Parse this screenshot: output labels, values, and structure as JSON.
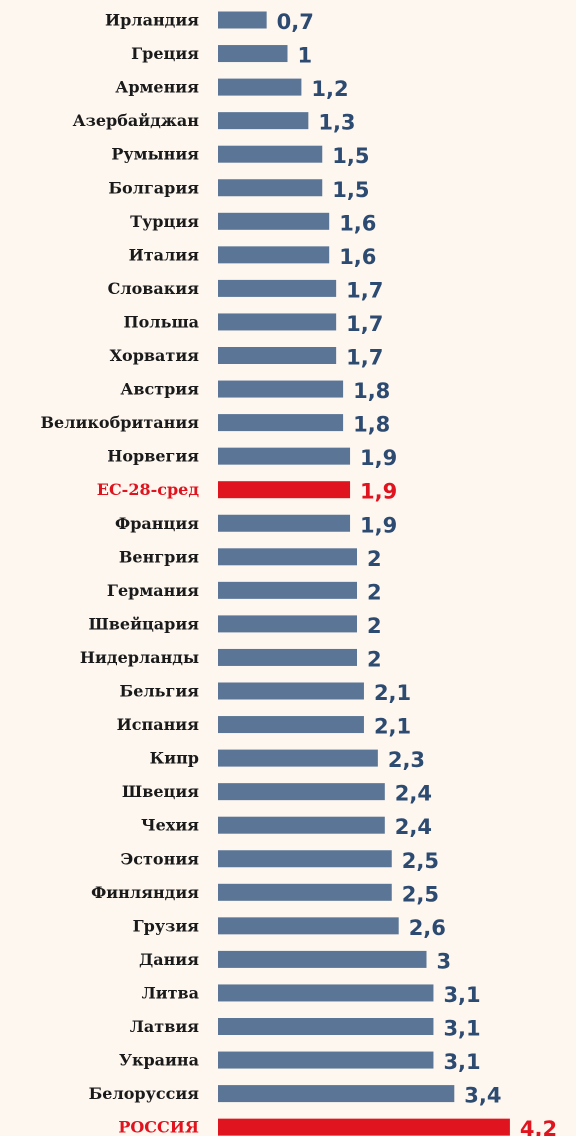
{
  "colors": {
    "bar": "#5b7596",
    "highlight": "#e0141e",
    "value_text": "#2d4a70",
    "label_text": "#1a1a1a",
    "background": "#fdf7f0"
  },
  "chart_data": {
    "type": "bar",
    "orientation": "horizontal",
    "categories": [
      "Ирландия",
      "Греция",
      "Армения",
      "Азербайджан",
      "Румыния",
      "Болгария",
      "Турция",
      "Италия",
      "Словакия",
      "Польша",
      "Хорватия",
      "Австрия",
      "Великобритания",
      "Норвегия",
      "ЕС-28-сред",
      "Франция",
      "Венгрия",
      "Германия",
      "Швейцария",
      "Нидерланды",
      "Бельгия",
      "Испания",
      "Кипр",
      "Швеция",
      "Чехия",
      "Эстония",
      "Финляндия",
      "Грузия",
      "Дания",
      "Литва",
      "Латвия",
      "Украина",
      "Белоруссия",
      "РОССИЯ"
    ],
    "values": [
      0.7,
      1,
      1.2,
      1.3,
      1.5,
      1.5,
      1.6,
      1.6,
      1.7,
      1.7,
      1.7,
      1.8,
      1.8,
      1.9,
      1.9,
      1.9,
      2,
      2,
      2,
      2,
      2.1,
      2.1,
      2.3,
      2.4,
      2.4,
      2.5,
      2.5,
      2.6,
      3,
      3.1,
      3.1,
      3.1,
      3.4,
      4.2
    ],
    "value_labels": [
      "0,7",
      "1",
      "1,2",
      "1,3",
      "1,5",
      "1,5",
      "1,6",
      "1,6",
      "1,7",
      "1,7",
      "1,7",
      "1,8",
      "1,8",
      "1,9",
      "1,9",
      "1,9",
      "2",
      "2",
      "2",
      "2",
      "2,1",
      "2,1",
      "2,3",
      "2,4",
      "2,4",
      "2,5",
      "2,5",
      "2,6",
      "3",
      "3,1",
      "3,1",
      "3,1",
      "3,4",
      "4,2"
    ],
    "highlighted": [
      "ЕС-28-сред",
      "РОССИЯ"
    ],
    "title": "",
    "xlabel": "",
    "ylabel": "",
    "xlim": [
      0,
      4.2
    ],
    "grid": false,
    "legend": "none"
  }
}
